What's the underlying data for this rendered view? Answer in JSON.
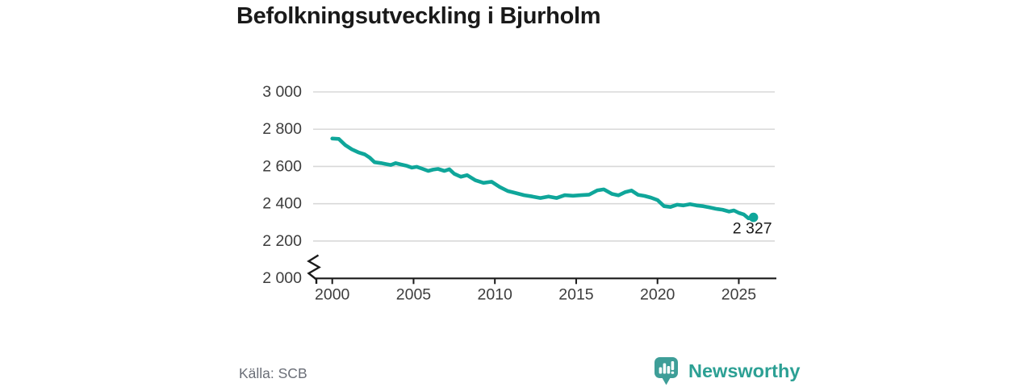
{
  "title": "Befolkningsutveckling i Bjurholm",
  "source": "Källa: SCB",
  "brand": {
    "name": "Newsworthy"
  },
  "colors": {
    "line": "#0fa69a",
    "grid": "#d8d8d8",
    "axis": "#1a1a1a",
    "tick_label": "#3d3d3d",
    "title": "#1a1a1a",
    "source": "#6a6e77",
    "brand_bubble": "#3e9e98",
    "brand_bars": "#ffffff",
    "brand_text": "#2ca094"
  },
  "chart_data": {
    "type": "line",
    "title": "Befolkningsutveckling i Bjurholm",
    "series_name": "Befolkning",
    "x": [
      2000.0,
      2000.4,
      2000.8,
      2001.2,
      2001.6,
      2002.0,
      2002.3,
      2002.6,
      2003.0,
      2003.3,
      2003.6,
      2003.9,
      2004.2,
      2004.6,
      2004.9,
      2005.2,
      2005.5,
      2005.9,
      2006.2,
      2006.5,
      2006.9,
      2007.2,
      2007.5,
      2007.9,
      2008.3,
      2008.8,
      2009.3,
      2009.8,
      2010.3,
      2010.8,
      2011.3,
      2011.8,
      2012.3,
      2012.8,
      2013.3,
      2013.8,
      2014.3,
      2014.8,
      2015.3,
      2015.8,
      2016.3,
      2016.7,
      2017.2,
      2017.6,
      2018.0,
      2018.4,
      2018.8,
      2019.2,
      2019.6,
      2020.0,
      2020.4,
      2020.8,
      2021.2,
      2021.6,
      2022.0,
      2022.4,
      2022.8,
      2023.2,
      2023.6,
      2024.0,
      2024.4,
      2024.7,
      2025.0,
      2025.3,
      2025.6,
      2025.9
    ],
    "values": [
      2750,
      2748,
      2715,
      2692,
      2676,
      2665,
      2648,
      2623,
      2618,
      2613,
      2608,
      2618,
      2611,
      2603,
      2594,
      2598,
      2589,
      2576,
      2583,
      2587,
      2576,
      2585,
      2561,
      2545,
      2553,
      2526,
      2512,
      2518,
      2490,
      2468,
      2457,
      2446,
      2439,
      2431,
      2439,
      2431,
      2446,
      2443,
      2446,
      2449,
      2472,
      2477,
      2453,
      2445,
      2462,
      2471,
      2448,
      2442,
      2433,
      2420,
      2387,
      2383,
      2395,
      2391,
      2398,
      2391,
      2387,
      2380,
      2373,
      2368,
      2358,
      2364,
      2351,
      2343,
      2322,
      2327
    ],
    "last_value": 2327,
    "last_point_label": "2 327",
    "xlim": [
      1998.8,
      2027.2
    ],
    "ylim": [
      2000,
      3000
    ],
    "axis_break": true,
    "grid": true,
    "legend": false,
    "xlabel": "",
    "ylabel": "",
    "y_ticks": [
      {
        "value": 3000,
        "label": "3 000"
      },
      {
        "value": 2800,
        "label": "2 800"
      },
      {
        "value": 2600,
        "label": "2 600"
      },
      {
        "value": 2400,
        "label": "2 400"
      },
      {
        "value": 2200,
        "label": "2 200"
      },
      {
        "value": 2000,
        "label": "2 000"
      }
    ],
    "x_ticks": [
      {
        "value": 2000,
        "label": "2000"
      },
      {
        "value": 2005,
        "label": "2005"
      },
      {
        "value": 2010,
        "label": "2010"
      },
      {
        "value": 2015,
        "label": "2015"
      },
      {
        "value": 2020,
        "label": "2020"
      },
      {
        "value": 2025,
        "label": "2025"
      }
    ]
  }
}
